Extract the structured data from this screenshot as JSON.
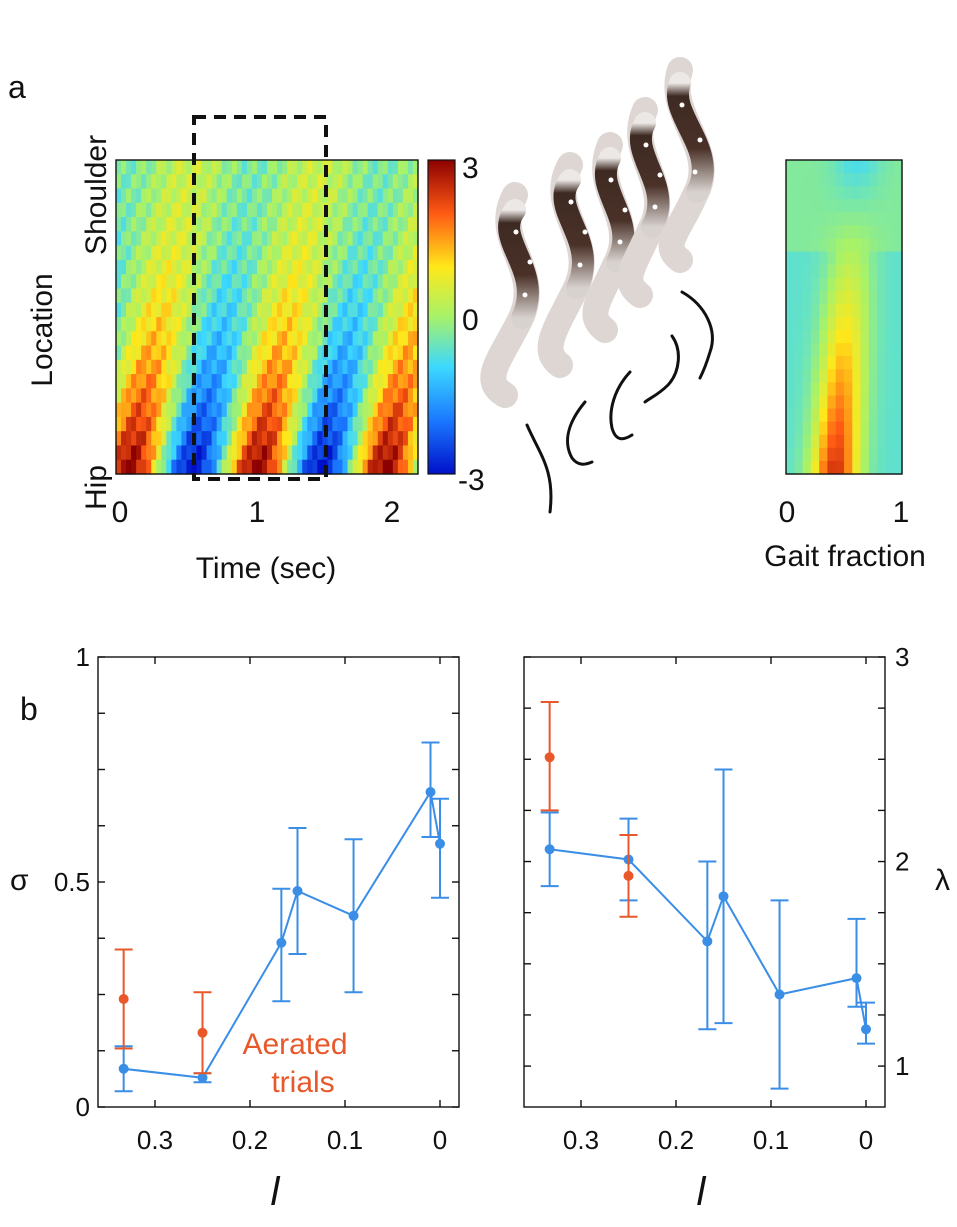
{
  "colors": {
    "blue_series": "#3a8ee6",
    "orange_series": "#e8582a",
    "axis": "#111111",
    "dashed_box": "#111111"
  },
  "panel_a": {
    "label": "a",
    "heatmap": {
      "ylabel": "Location",
      "ytick_top": "Shoulder",
      "ytick_bottom": "Hip",
      "xlabel": "Time (sec)",
      "xticks": [
        "0",
        "1",
        "2"
      ],
      "x_range": [
        0,
        2.2
      ],
      "highlight_window_sec": [
        0.55,
        1.5
      ]
    },
    "colorbar": {
      "ticks": [
        "3",
        "0",
        "-3"
      ],
      "range": [
        -3,
        3
      ]
    },
    "gait_map": {
      "xlabel": "Gait fraction",
      "xticks": [
        "0",
        "1"
      ]
    },
    "illustration": "snake-sequence"
  },
  "panel_b": {
    "label": "b"
  },
  "chart_data": [
    {
      "type": "line",
      "title": "",
      "xlabel": "l",
      "ylabel": "σ",
      "xlim": [
        0.36,
        -0.02
      ],
      "ylim": [
        0,
        1
      ],
      "xticks": [
        "0.3",
        "0.2",
        "0.1",
        "0"
      ],
      "yticks": [
        "0",
        "0.5",
        "1"
      ],
      "annotation_line1": "Aerated",
      "annotation_line2": "trials",
      "series": [
        {
          "name": "Blue",
          "x": [
            0.333,
            0.25,
            0.167,
            0.15,
            0.091,
            0.01,
            0.0
          ],
          "y": [
            0.085,
            0.065,
            0.365,
            0.48,
            0.425,
            0.7,
            0.585
          ],
          "err_low": [
            0.05,
            0.01,
            0.13,
            0.14,
            0.17,
            0.1,
            0.12
          ],
          "err_high": [
            0.05,
            0.01,
            0.12,
            0.14,
            0.17,
            0.11,
            0.1
          ]
        },
        {
          "name": "Aerated trials",
          "x": [
            0.333,
            0.25
          ],
          "y": [
            0.24,
            0.165
          ],
          "err_low": [
            0.11,
            0.09
          ],
          "err_high": [
            0.11,
            0.09
          ]
        }
      ]
    },
    {
      "type": "line",
      "title": "",
      "xlabel": "l",
      "ylabel": "λ",
      "xlim": [
        0.36,
        -0.02
      ],
      "ylim": [
        0.8,
        3
      ],
      "xticks": [
        "0.3",
        "0.2",
        "0.1",
        "0"
      ],
      "yticks": [
        "1",
        "2",
        "3"
      ],
      "series": [
        {
          "name": "Blue",
          "x": [
            0.333,
            0.25,
            0.167,
            0.15,
            0.091,
            0.01,
            0.0
          ],
          "y": [
            2.06,
            2.01,
            1.61,
            1.83,
            1.35,
            1.43,
            1.18
          ],
          "err_low": [
            0.18,
            0.2,
            0.43,
            0.62,
            0.46,
            0.14,
            0.07
          ],
          "err_high": [
            0.18,
            0.2,
            0.39,
            0.62,
            0.46,
            0.29,
            0.13
          ]
        },
        {
          "name": "Aerated trials",
          "x": [
            0.333,
            0.25
          ],
          "y": [
            2.51,
            1.93
          ],
          "err_low": [
            0.26,
            0.2
          ],
          "err_high": [
            0.27,
            0.2
          ]
        }
      ]
    }
  ]
}
